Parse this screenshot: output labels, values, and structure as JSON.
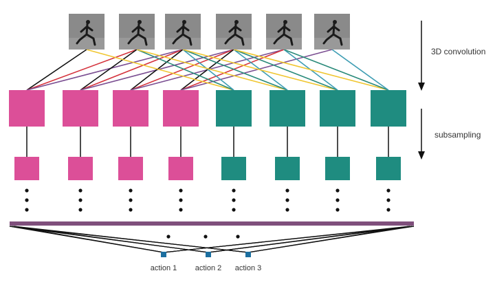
{
  "labels": {
    "convolution": "3D convolution",
    "subsampling": "subsampling",
    "actions": [
      "action 1",
      "action 2",
      "action 3"
    ]
  },
  "input_frames": 6,
  "feature_maps": {
    "pink_count": 4,
    "teal_count": 4
  },
  "colors": {
    "pink": "#dc4f98",
    "teal": "#1f8c80",
    "bar": "#7f4f7c",
    "action": "#1c6fa0",
    "frame": "#8a8a8a",
    "connections": [
      "#111111",
      "#d4323c",
      "#7b4f92",
      "#f0c630",
      "#2a8a7a",
      "#3e9db3"
    ]
  }
}
